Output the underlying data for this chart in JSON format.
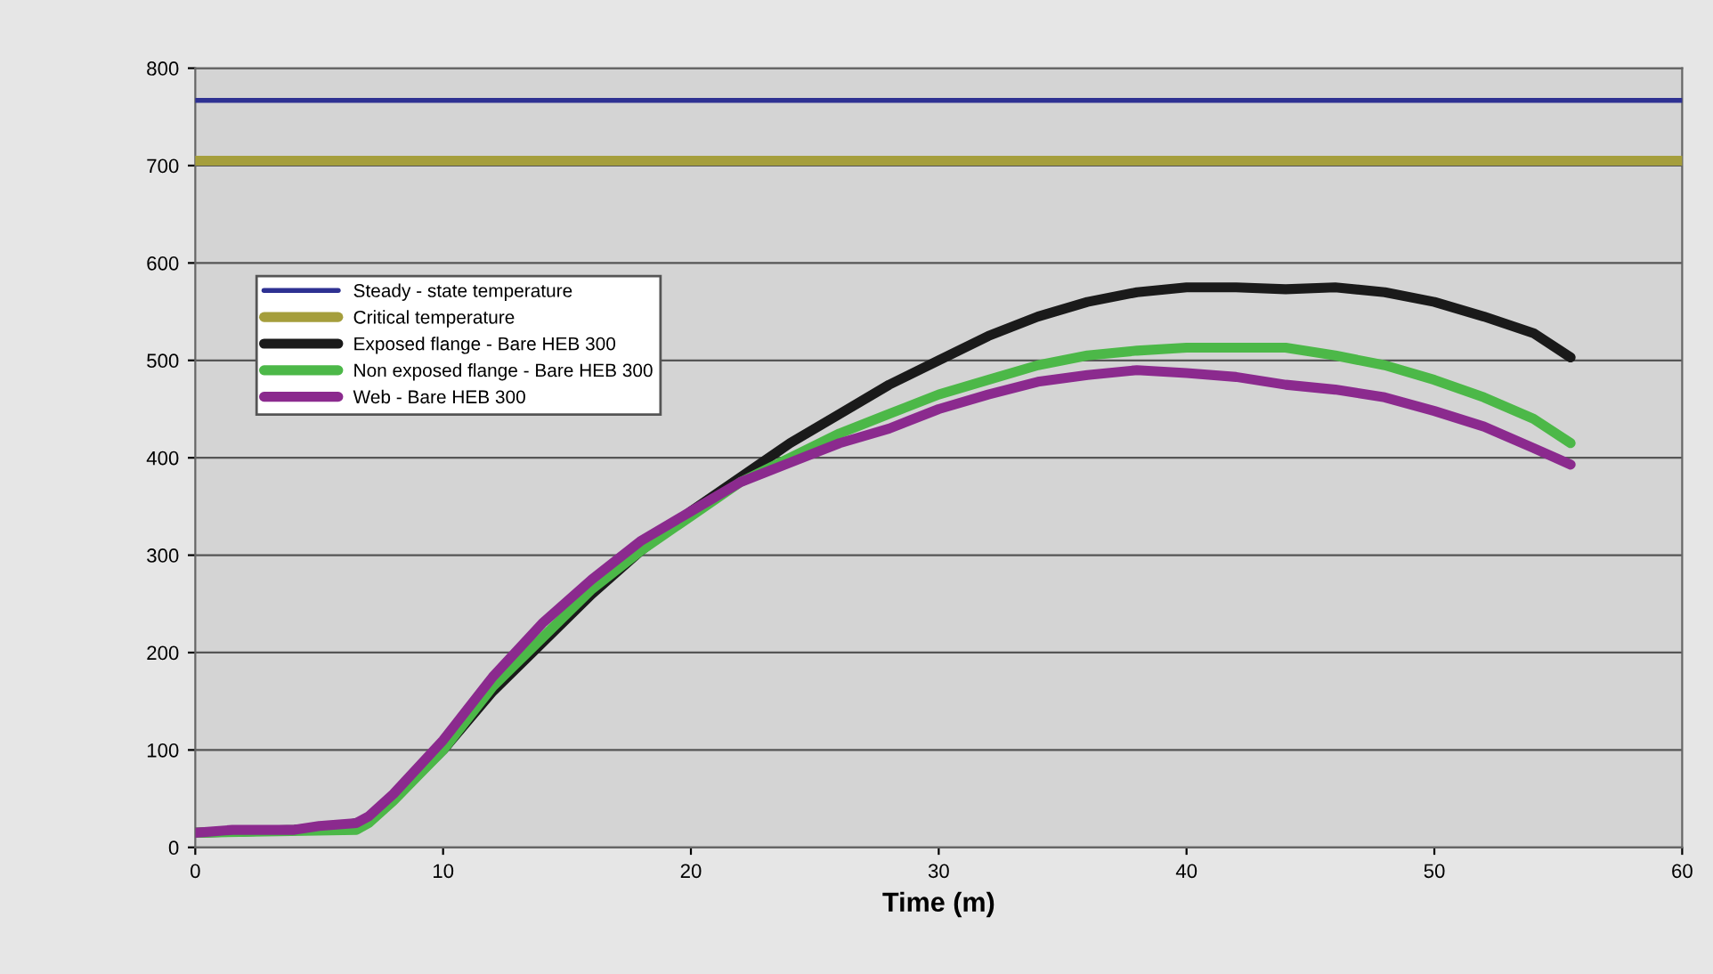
{
  "chart_data": {
    "type": "line",
    "xlabel": "Time (m)",
    "xlim": [
      0,
      60
    ],
    "xticks": [
      0,
      10,
      20,
      30,
      40,
      50,
      60
    ],
    "ylim": [
      0,
      800
    ],
    "yticks": [
      0,
      100,
      200,
      300,
      400,
      500,
      600,
      700,
      800
    ],
    "grid": "y",
    "legend": "upper left",
    "series": [
      {
        "name": "Steady - state temperature",
        "color": "#2e3192",
        "x": [
          0,
          60
        ],
        "values": [
          767,
          767
        ]
      },
      {
        "name": "Critical temperature",
        "color": "#a59e3c",
        "x": [
          0,
          60
        ],
        "values": [
          705,
          705
        ]
      },
      {
        "name": "Exposed flange - Bare HEB 300",
        "color": "#1a1a1a",
        "x": [
          0,
          4,
          6,
          7,
          8,
          10,
          12,
          14,
          16,
          18,
          20,
          22,
          24,
          26,
          28,
          30,
          32,
          34,
          36,
          38,
          40,
          42,
          44,
          46,
          48,
          50,
          52,
          54,
          55.5
        ],
        "values": [
          15,
          18,
          22,
          28,
          50,
          100,
          160,
          210,
          260,
          305,
          345,
          380,
          415,
          445,
          475,
          500,
          525,
          545,
          560,
          570,
          575,
          575,
          573,
          575,
          570,
          560,
          545,
          528,
          503
        ]
      },
      {
        "name": "Non exposed flange - Bare HEB 300",
        "color": "#4cb848",
        "x": [
          0,
          6.5,
          7,
          8,
          10,
          12,
          14,
          16,
          18,
          20,
          22,
          24,
          26,
          28,
          30,
          32,
          34,
          36,
          38,
          40,
          42,
          44,
          46,
          48,
          50,
          52,
          54,
          55.5
        ],
        "values": [
          15,
          18,
          25,
          48,
          100,
          165,
          215,
          265,
          305,
          340,
          375,
          400,
          425,
          445,
          465,
          480,
          495,
          505,
          510,
          513,
          513,
          513,
          505,
          495,
          480,
          462,
          440,
          415
        ]
      },
      {
        "name": "Web - Bare HEB 300",
        "color": "#8b2a8e",
        "x": [
          0,
          1.5,
          4,
          5,
          6.5,
          7,
          8,
          10,
          12,
          14,
          16,
          18,
          20,
          22,
          24,
          26,
          28,
          30,
          32,
          34,
          36,
          38,
          40,
          42,
          44,
          46,
          48,
          50,
          52,
          54,
          55.5
        ],
        "values": [
          15,
          18,
          18,
          22,
          25,
          32,
          55,
          110,
          175,
          230,
          275,
          315,
          345,
          375,
          395,
          415,
          430,
          450,
          465,
          478,
          485,
          490,
          487,
          483,
          475,
          470,
          462,
          448,
          432,
          410,
          393
        ]
      }
    ]
  }
}
